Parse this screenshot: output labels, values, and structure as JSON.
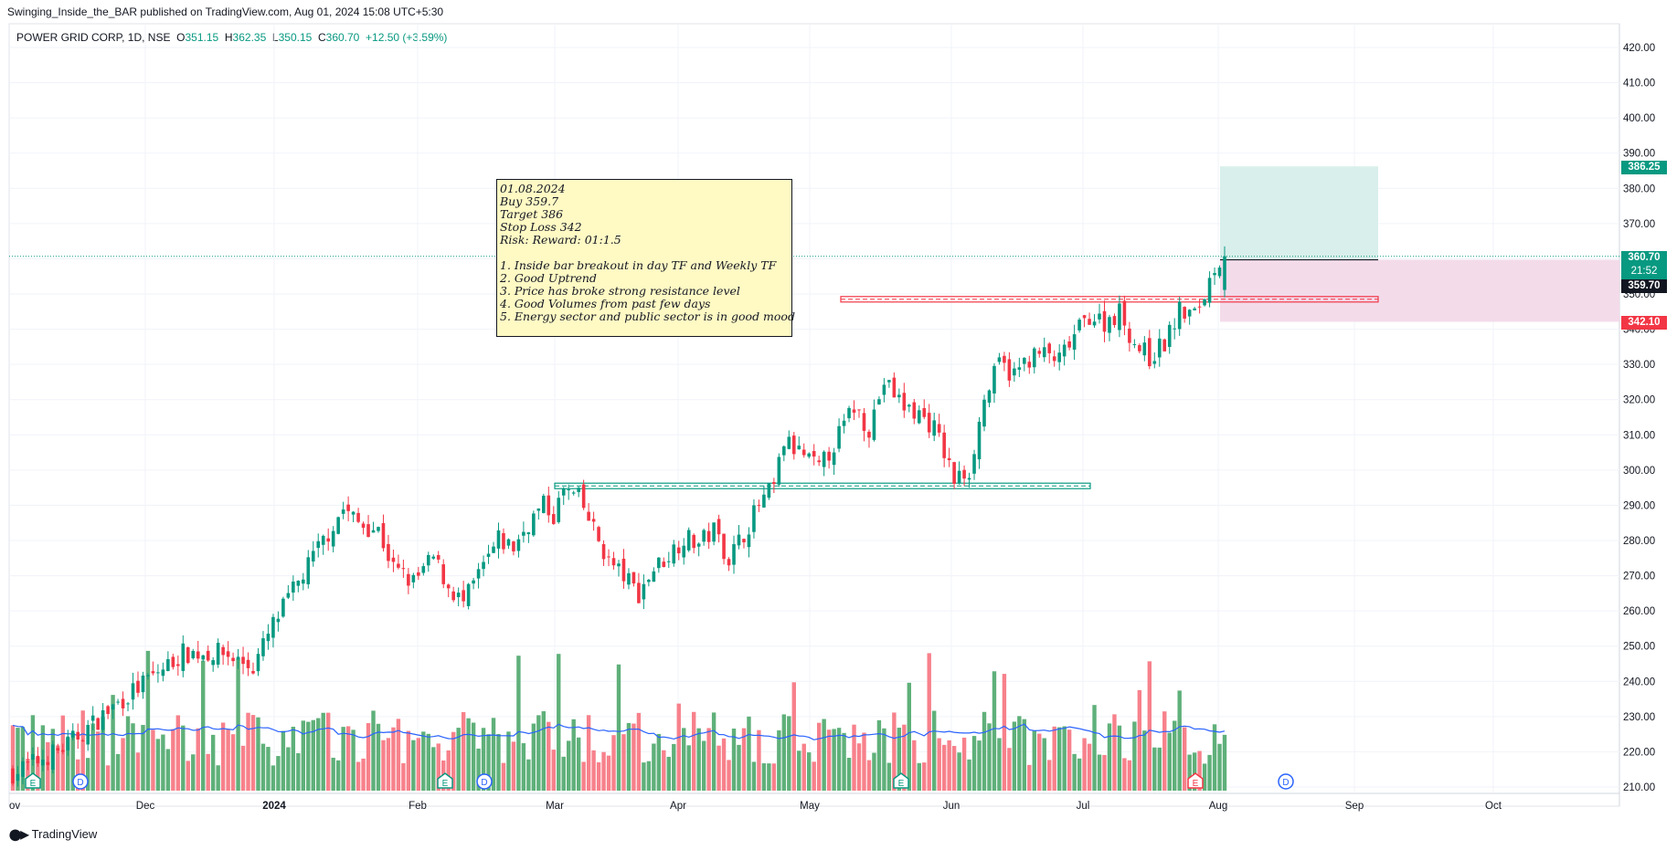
{
  "header": {
    "publish_line": "Swinging_Inside_the_BAR published on TradingView.com, Aug 01, 2024 15:08 UTC+5:30",
    "symbol": "POWER GRID CORP, 1D, NSE",
    "o_label": "O",
    "o_value": "351.15",
    "h_label": "H",
    "h_value": "362.35",
    "l_label": "L",
    "l_value": "350.15",
    "c_label": "C",
    "c_value": "360.70",
    "change": "+12.50 (+3.59%)"
  },
  "annotation": {
    "lines": [
      "01.08.2024",
      "Buy 359.7",
      "Target 386",
      "Stop Loss 342",
      "Risk: Reward: 01:1.5",
      "",
      "1. Inside bar breakout in day TF and Weekly TF",
      "2. Good Uptrend",
      "3. Price has broke strong resistance level",
      "4. Good Volumes from past few days",
      "5. Energy sector and public sector is in good mood"
    ]
  },
  "price_labels": {
    "target": "386.25",
    "last": "360.70",
    "countdown": "21:52",
    "entry": "359.70",
    "stop": "342.10"
  },
  "colors": {
    "up": "#089981",
    "down": "#f23645",
    "vol_up": "#5fb07a",
    "vol_down": "#f7818b",
    "ma": "#2962ff",
    "target_zone": "#d9efeb",
    "stop_zone": "#f3dbea",
    "resistance": "#f23645",
    "support": "#089981"
  },
  "footer": {
    "brand": "TradingView",
    "logo": "tv-logo-icon"
  },
  "chart_data": {
    "type": "candlestick",
    "title": "",
    "y_axis": {
      "ticks": [
        210,
        220,
        230,
        240,
        250,
        260,
        270,
        280,
        290,
        300,
        310,
        320,
        330,
        340,
        350,
        360,
        370,
        380,
        390,
        400,
        410,
        420
      ],
      "suffix": ".00",
      "ylim": [
        207,
        424
      ]
    },
    "x_axis": {
      "labels": [
        "ov",
        "Dec",
        "2024",
        "Feb",
        "Mar",
        "Apr",
        "May",
        "Jun",
        "Jul",
        "Aug",
        "Sep",
        "Oct"
      ]
    },
    "levels": [
      {
        "name": "resistance",
        "value": 348.5
      },
      {
        "name": "support",
        "value": 295.5
      }
    ],
    "position": {
      "entry": 359.7,
      "target": 386.25,
      "stop": 342.1
    },
    "events": [
      {
        "type": "E",
        "near": "Nov"
      },
      {
        "type": "D",
        "near": "Nov"
      },
      {
        "type": "E",
        "near": "Feb"
      },
      {
        "type": "D",
        "near": "Feb"
      },
      {
        "type": "E",
        "near": "May"
      },
      {
        "type": "E",
        "near": "Aug"
      },
      {
        "type": "D",
        "near": "Aug"
      }
    ],
    "price_path": [
      [
        0,
        214
      ],
      [
        10,
        221
      ],
      [
        22,
        235
      ],
      [
        34,
        248
      ],
      [
        42,
        248
      ],
      [
        48,
        244
      ],
      [
        52,
        256
      ],
      [
        57,
        268
      ],
      [
        62,
        280
      ],
      [
        66,
        289
      ],
      [
        69,
        285
      ],
      [
        73,
        283
      ],
      [
        76,
        272
      ],
      [
        80,
        268
      ],
      [
        84,
        275
      ],
      [
        87,
        267
      ],
      [
        90,
        262
      ],
      [
        93,
        270
      ],
      [
        97,
        280
      ],
      [
        100,
        278
      ],
      [
        103,
        285
      ],
      [
        106,
        290
      ],
      [
        108,
        287
      ],
      [
        110,
        294
      ],
      [
        113,
        292
      ],
      [
        116,
        283
      ],
      [
        119,
        274
      ],
      [
        122,
        270
      ],
      [
        125,
        265
      ],
      [
        128,
        272
      ],
      [
        131,
        276
      ],
      [
        134,
        281
      ],
      [
        137,
        279
      ],
      [
        140,
        283
      ],
      [
        143,
        275
      ],
      [
        146,
        282
      ],
      [
        149,
        290
      ],
      [
        152,
        295
      ],
      [
        154,
        308
      ],
      [
        158,
        304
      ],
      [
        161,
        300
      ],
      [
        165,
        310
      ],
      [
        168,
        318
      ],
      [
        171,
        312
      ],
      [
        174,
        325
      ],
      [
        178,
        318
      ],
      [
        181,
        316
      ],
      [
        184,
        312
      ],
      [
        186,
        305
      ],
      [
        188,
        297
      ],
      [
        191,
        300
      ],
      [
        194,
        320
      ],
      [
        197,
        330
      ],
      [
        200,
        327
      ],
      [
        203,
        332
      ],
      [
        206,
        333
      ],
      [
        209,
        331
      ],
      [
        212,
        338
      ],
      [
        215,
        344
      ],
      [
        218,
        342
      ],
      [
        221,
        345
      ],
      [
        224,
        336
      ],
      [
        227,
        332
      ],
      [
        230,
        336
      ],
      [
        233,
        345
      ],
      [
        236,
        344
      ],
      [
        238,
        350
      ],
      [
        240,
        358
      ],
      [
        242,
        361
      ]
    ],
    "volume": {
      "ylim_frac": "bottom-pane",
      "ma_series": "20-period moving average"
    }
  }
}
